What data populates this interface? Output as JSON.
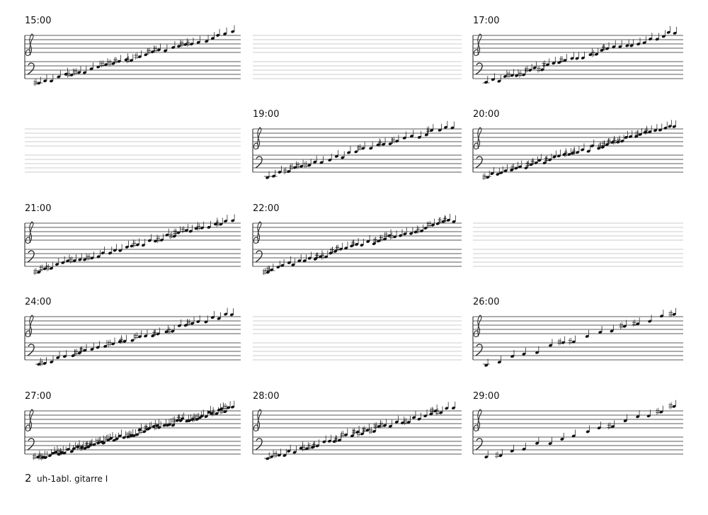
{
  "systems": [
    "15:00",
    "17:00",
    "19:00",
    "20:00",
    "21:00",
    "22:00",
    "24:00",
    "26:00",
    "27:00",
    "28:00",
    "29:00"
  ],
  "footer": {
    "page": "2",
    "title": "uh-1abl. gitarre I"
  }
}
